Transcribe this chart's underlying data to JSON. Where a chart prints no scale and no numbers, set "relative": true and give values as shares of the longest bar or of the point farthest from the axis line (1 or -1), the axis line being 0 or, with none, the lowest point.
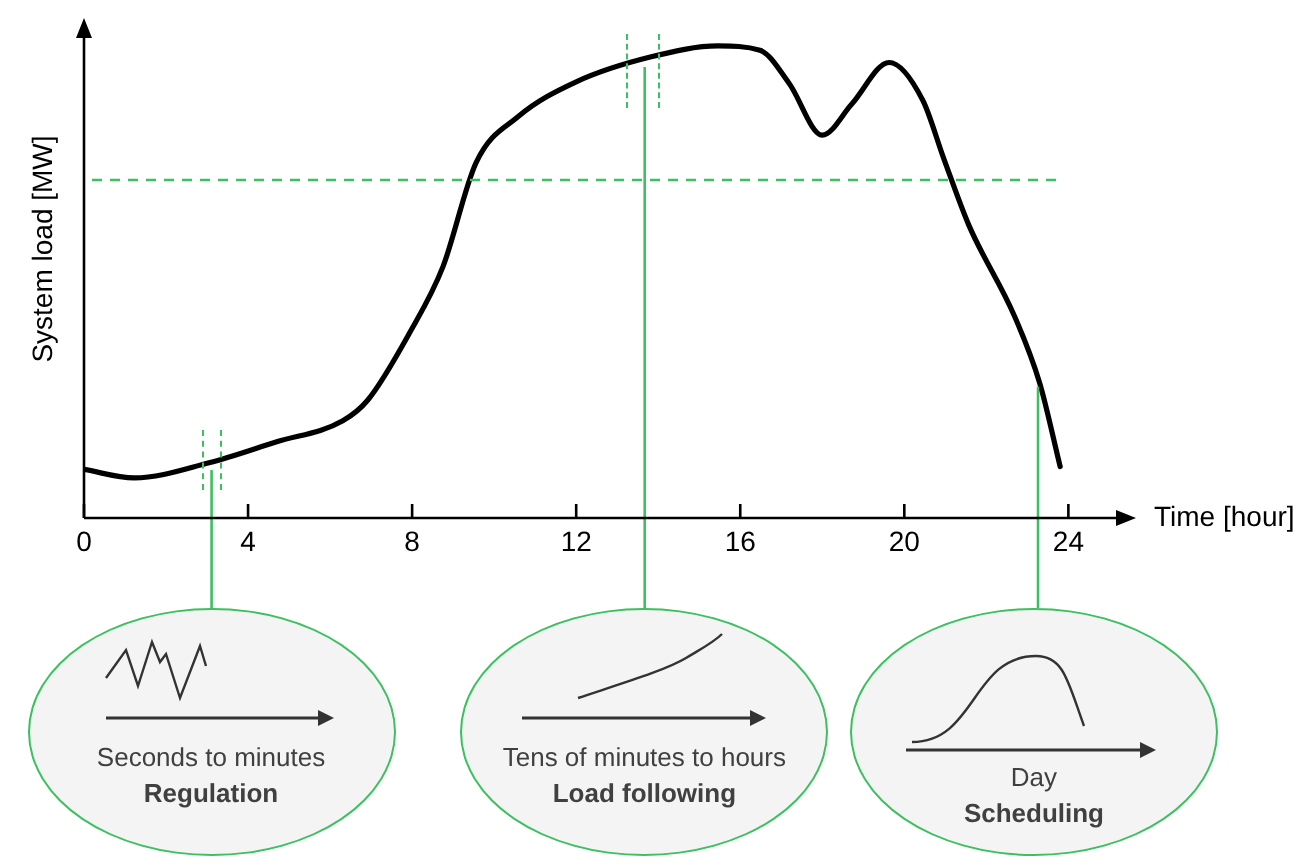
{
  "chart_data": {
    "type": "line",
    "relative": true,
    "xlabel": "Time [hour]",
    "ylabel": "System load [MW]",
    "xlim": [
      0,
      25.6
    ],
    "xticks": [
      0,
      4,
      8,
      12,
      16,
      20,
      24
    ],
    "grid": false,
    "legend": false,
    "marker": "none",
    "line_style": "solid",
    "series": [
      {
        "color": "#000000",
        "x": [
          0,
          1.22,
          3.05,
          4.68,
          6.31,
          6.92,
          7.93,
          8.75,
          9.56,
          10.58,
          12.0,
          13.83,
          15.46,
          16.48,
          17.19,
          18.0,
          18.72,
          19.63,
          20.45,
          20.96,
          21.57,
          22.69,
          23.3,
          23.8
        ],
        "values": [
          0.103,
          0.085,
          0.117,
          0.161,
          0.206,
          0.25,
          0.391,
          0.532,
          0.753,
          0.85,
          0.924,
          0.977,
          1.0,
          0.991,
          0.921,
          0.811,
          0.877,
          0.965,
          0.885,
          0.762,
          0.621,
          0.427,
          0.286,
          0.109
        ]
      }
    ],
    "ref_lines": [
      {
        "axis": "y",
        "value": 0.716,
        "color": "#3cc060",
        "line_style": "dashed"
      },
      {
        "axis": "x",
        "value": 3.11,
        "color": "#3cc060",
        "line_style": "solid"
      },
      {
        "axis": "x",
        "value": 13.67,
        "color": "#3cc060",
        "line_style": "solid"
      },
      {
        "axis": "x",
        "value": 23.26,
        "color": "#3cc060",
        "line_style": "solid"
      }
    ],
    "annotations": [
      "Seconds to minutes",
      "Regulation",
      "Tens of minutes to hours",
      "Load following",
      "Day",
      "Scheduling"
    ]
  }
}
